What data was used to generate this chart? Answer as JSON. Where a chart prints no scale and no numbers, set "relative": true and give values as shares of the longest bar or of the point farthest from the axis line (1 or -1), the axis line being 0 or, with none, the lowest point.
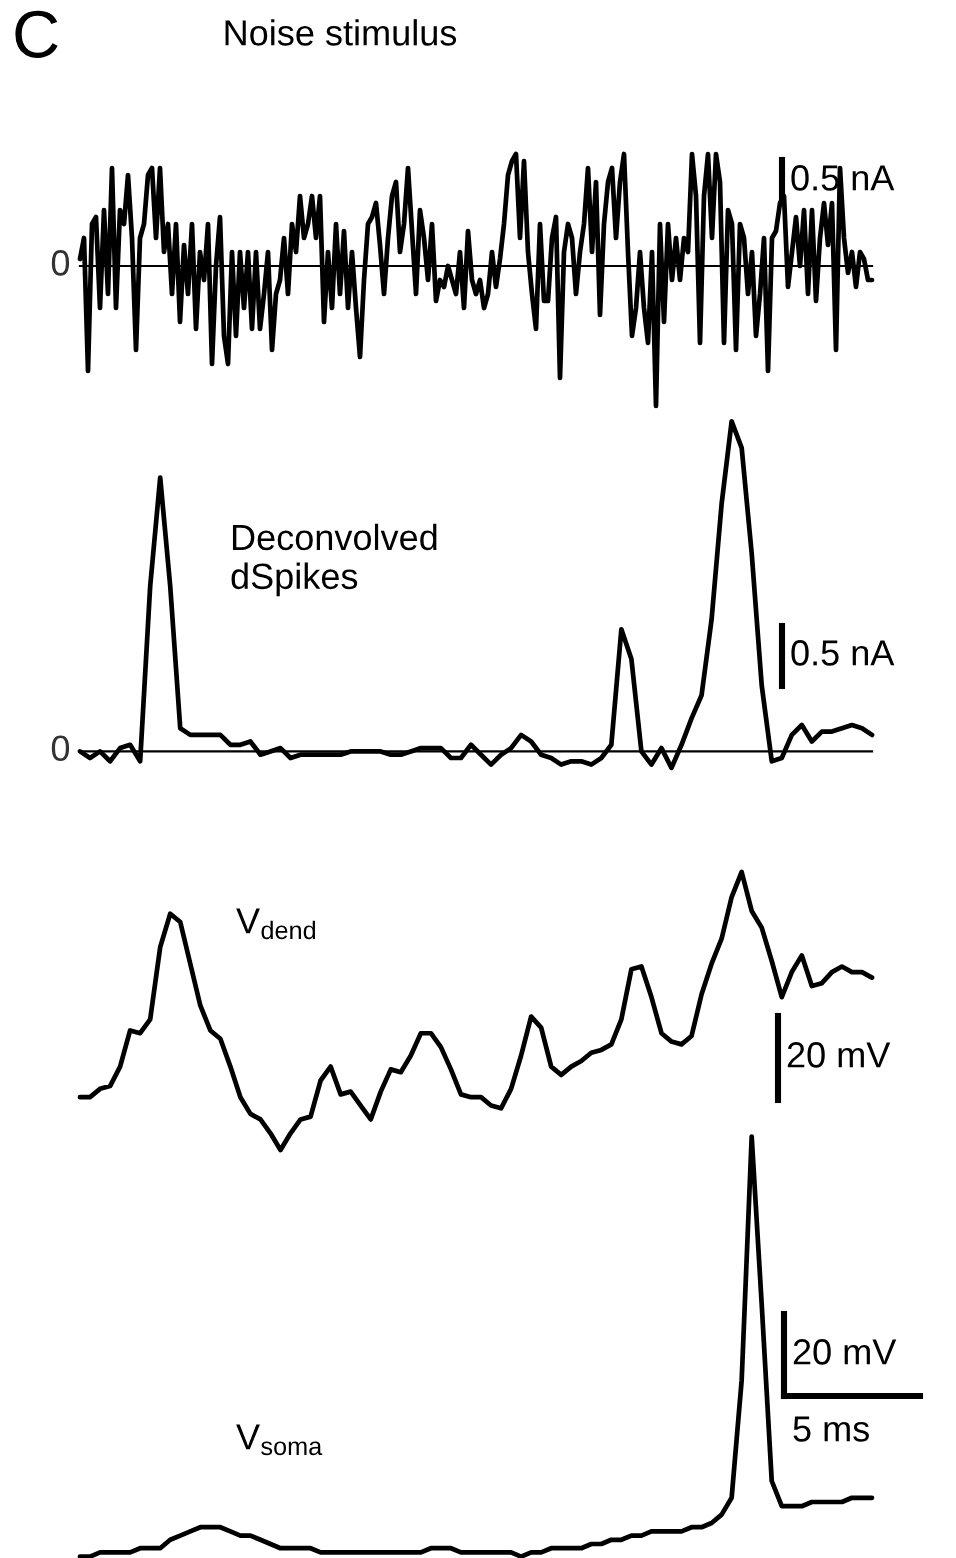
{
  "chart_data": [
    {
      "type": "line",
      "title": "Noise stimulus",
      "relative": true,
      "color": "#000000",
      "categories": [
        null,
        null,
        null,
        null,
        null,
        null,
        null,
        null,
        null,
        null,
        null,
        null,
        null,
        null,
        null,
        null,
        null,
        null,
        null,
        null,
        null,
        null,
        null,
        null,
        null,
        null,
        null,
        null,
        null,
        null,
        null,
        null,
        null,
        null,
        null,
        null,
        null,
        null,
        null,
        null,
        null,
        null,
        null,
        null,
        null,
        null,
        null,
        null,
        null,
        null,
        null,
        null,
        null,
        null,
        null,
        null,
        null,
        null,
        null,
        null,
        null,
        null,
        null,
        null,
        null,
        null,
        null,
        null,
        null,
        null,
        null,
        null,
        null,
        null,
        null,
        null,
        null,
        null,
        null,
        null,
        null,
        null,
        null,
        null,
        null,
        null,
        null,
        null,
        null,
        null,
        null,
        null,
        null,
        null,
        null,
        null,
        null,
        null,
        null,
        null,
        null,
        null,
        null,
        null,
        null,
        null,
        null,
        null,
        null,
        null,
        null,
        null,
        null,
        null,
        null,
        null,
        null,
        null,
        null,
        null,
        null,
        null,
        null,
        null,
        null,
        null,
        null,
        null,
        null,
        null,
        null,
        null,
        null,
        null,
        null,
        null,
        null,
        null,
        null,
        null,
        null,
        null,
        null,
        null,
        null,
        null,
        null,
        null,
        null,
        null,
        null,
        null,
        null,
        null,
        null,
        null,
        null,
        null,
        null,
        null,
        null,
        null,
        null,
        null,
        null,
        null,
        null,
        null,
        null,
        null,
        null,
        null,
        null,
        null,
        null,
        null,
        null,
        null,
        null,
        null,
        null,
        null,
        null,
        null,
        null,
        null,
        null,
        null,
        null,
        null,
        null,
        null,
        null,
        null,
        null,
        null,
        null,
        null,
        null
      ],
      "values": [
        0.05,
        0.2,
        -0.75,
        0.3,
        0.35,
        -0.3,
        0.4,
        -0.2,
        0.7,
        -0.3,
        0.4,
        0.3,
        0.65,
        0.2,
        -0.6,
        0.2,
        0.3,
        0.65,
        0.7,
        0.2,
        0.7,
        0.1,
        0.3,
        -0.2,
        0.3,
        -0.4,
        0.15,
        -0.2,
        0.3,
        -0.45,
        0.1,
        -0.1,
        0.3,
        -0.7,
        0,
        0.35,
        -0.5,
        -0.7,
        0.1,
        -0.5,
        0.1,
        -0.3,
        0.1,
        -0.45,
        0.1,
        -0.45,
        -0.2,
        0.1,
        -0.6,
        -0.2,
        -0.1,
        0.2,
        -0.2,
        0.3,
        0.1,
        0.5,
        0.2,
        0.3,
        0.5,
        0.2,
        0.5,
        -0.4,
        0.1,
        -0.3,
        0.3,
        -0.2,
        0.25,
        -0.3,
        0.1,
        -0.3,
        -0.65,
        -0.1,
        0.3,
        0.35,
        0.45,
        0.15,
        -0.2,
        0.2,
        0.5,
        0.6,
        0.1,
        0.3,
        0.7,
        0.25,
        -0.2,
        0.4,
        0.2,
        -0.1,
        0.3,
        -0.25,
        -0.1,
        -0.15,
        0,
        -0.1,
        -0.2,
        0.1,
        -0.3,
        0.25,
        -0.1,
        -0.2,
        -0.1,
        -0.3,
        -0.2,
        0.1,
        -0.15,
        0.05,
        0.3,
        0.65,
        0.75,
        0.8,
        0.2,
        0.75,
        0.1,
        -0.2,
        -0.45,
        0.3,
        -0.25,
        -0.25,
        0.2,
        0.35,
        -0.8,
        0.1,
        0.3,
        0.2,
        -0.2,
        0.1,
        0.3,
        0.7,
        0.1,
        0.6,
        -0.35,
        0.3,
        0.6,
        0.7,
        0.2,
        0.6,
        0.8,
        0.1,
        -0.5,
        -0.3,
        0.1,
        -0.3,
        -0.55,
        0.1,
        -1.0,
        0.3,
        -0.4,
        0.3,
        -0.1,
        0.2,
        -0.1,
        0.2,
        0.1,
        0.8,
        0.5,
        -0.55,
        0.5,
        0.8,
        0.2,
        0.8,
        0.6,
        -0.55,
        0.4,
        0.3,
        -0.6,
        0.3,
        0.2,
        -0.2,
        0.1,
        -0.5,
        -0.2,
        0.2,
        -0.75,
        0.2,
        0.25,
        0.45,
        0.5,
        -0.15,
        0.1,
        0.35,
        0,
        0.4,
        -0.2,
        0.4,
        -0.25,
        0.2,
        0.45,
        0.15,
        0.45,
        -0.6,
        0.7,
        0.2,
        -0.05,
        0.1,
        -0.15,
        0.1,
        0.05,
        -0.1,
        -0.1
      ],
      "ref_lines": [
        {
          "axis": "y",
          "value": 0,
          "label": "0"
        }
      ],
      "annotations": [
        "0.5 nA",
        "C"
      ]
    },
    {
      "type": "line",
      "title": "Deconvolved dSpikes",
      "relative": true,
      "color": "#000000",
      "categories": [
        null,
        null,
        null,
        null,
        null,
        null,
        null,
        null,
        null,
        null,
        null,
        null,
        null,
        null,
        null,
        null,
        null,
        null,
        null,
        null,
        null,
        null,
        null,
        null,
        null,
        null,
        null,
        null,
        null,
        null,
        null,
        null,
        null,
        null,
        null,
        null,
        null,
        null,
        null,
        null,
        null,
        null,
        null,
        null,
        null,
        null,
        null,
        null,
        null,
        null,
        null,
        null,
        null,
        null,
        null,
        null,
        null,
        null,
        null,
        null,
        null,
        null,
        null,
        null,
        null,
        null,
        null,
        null,
        null,
        null,
        null,
        null,
        null,
        null,
        null,
        null,
        null,
        null,
        null,
        null
      ],
      "values": [
        0,
        -0.02,
        0,
        -0.03,
        0.01,
        0.02,
        -0.03,
        0.5,
        0.83,
        0.5,
        0.07,
        0.05,
        0.05,
        0.05,
        0.05,
        0.02,
        0.02,
        0.03,
        -0.01,
        0,
        0.01,
        -0.02,
        -0.01,
        -0.01,
        -0.01,
        -0.01,
        -0.01,
        0,
        0,
        0,
        0,
        -0.01,
        -0.01,
        0,
        0.01,
        0.01,
        0.01,
        -0.02,
        -0.02,
        0.02,
        -0.01,
        -0.04,
        -0.01,
        0.01,
        0.05,
        0.03,
        -0.01,
        -0.02,
        -0.04,
        -0.03,
        -0.03,
        -0.04,
        -0.02,
        0.02,
        0.37,
        0.28,
        0,
        -0.04,
        0.01,
        -0.05,
        0.02,
        0.1,
        0.17,
        0.4,
        0.75,
        1.0,
        0.92,
        0.6,
        0.2,
        -0.03,
        -0.02,
        0.05,
        0.08,
        0.03,
        0.06,
        0.06,
        0.07,
        0.08,
        0.07,
        0.05
      ],
      "ref_lines": [
        {
          "axis": "y",
          "value": 0,
          "label": "0"
        }
      ],
      "annotations": [
        "0.5 nA"
      ]
    },
    {
      "type": "line",
      "title": "V$_{dend}$",
      "relative": true,
      "color": "#000000",
      "categories": [
        null,
        null,
        null,
        null,
        null,
        null,
        null,
        null,
        null,
        null,
        null,
        null,
        null,
        null,
        null,
        null,
        null,
        null,
        null,
        null,
        null,
        null,
        null,
        null,
        null,
        null,
        null,
        null,
        null,
        null,
        null,
        null,
        null,
        null,
        null,
        null,
        null,
        null,
        null,
        null,
        null,
        null,
        null,
        null,
        null,
        null,
        null,
        null,
        null,
        null,
        null,
        null,
        null,
        null,
        null,
        null,
        null,
        null,
        null,
        null,
        null,
        null,
        null,
        null,
        null,
        null,
        null,
        null,
        null,
        null,
        null,
        null,
        null,
        null,
        null,
        null,
        null,
        null,
        null,
        null
      ],
      "values": [
        0.19,
        0.19,
        0.22,
        0.23,
        0.3,
        0.43,
        0.42,
        0.47,
        0.73,
        0.85,
        0.82,
        0.67,
        0.52,
        0.43,
        0.4,
        0.3,
        0.19,
        0.13,
        0.11,
        0.06,
        0,
        0.06,
        0.11,
        0.12,
        0.25,
        0.3,
        0.2,
        0.21,
        0.16,
        0.11,
        0.21,
        0.29,
        0.28,
        0.34,
        0.42,
        0.42,
        0.37,
        0.29,
        0.2,
        0.19,
        0.19,
        0.16,
        0.15,
        0.22,
        0.34,
        0.48,
        0.44,
        0.3,
        0.27,
        0.3,
        0.32,
        0.35,
        0.36,
        0.38,
        0.47,
        0.65,
        0.66,
        0.55,
        0.42,
        0.39,
        0.38,
        0.41,
        0.56,
        0.67,
        0.76,
        0.91,
        1.0,
        0.86,
        0.8,
        0.68,
        0.55,
        0.64,
        0.7,
        0.59,
        0.6,
        0.64,
        0.66,
        0.64,
        0.64,
        0.62
      ],
      "annotations": [
        "20 mV"
      ]
    },
    {
      "type": "line",
      "title": "V$_{soma}$",
      "relative": true,
      "color": "#000000",
      "categories": [
        null,
        null,
        null,
        null,
        null,
        null,
        null,
        null,
        null,
        null,
        null,
        null,
        null,
        null,
        null,
        null,
        null,
        null,
        null,
        null,
        null,
        null,
        null,
        null,
        null,
        null,
        null,
        null,
        null,
        null,
        null,
        null,
        null,
        null,
        null,
        null,
        null,
        null,
        null,
        null,
        null,
        null,
        null,
        null,
        null,
        null,
        null,
        null,
        null,
        null,
        null,
        null,
        null,
        null,
        null,
        null,
        null,
        null,
        null,
        null,
        null,
        null,
        null,
        null,
        null,
        null,
        null,
        null,
        null,
        null,
        null,
        null,
        null,
        null,
        null,
        null,
        null,
        null,
        null,
        null
      ],
      "values": [
        0,
        0,
        0.01,
        0.01,
        0.01,
        0.01,
        0.02,
        0.02,
        0.02,
        0.04,
        0.05,
        0.06,
        0.07,
        0.07,
        0.07,
        0.06,
        0.05,
        0.05,
        0.04,
        0.03,
        0.02,
        0.02,
        0.02,
        0.02,
        0.01,
        0.01,
        0.01,
        0.01,
        0.01,
        0.01,
        0.01,
        0.01,
        0.01,
        0.01,
        0.01,
        0.02,
        0.02,
        0.02,
        0.01,
        0.01,
        0.01,
        0.01,
        0.01,
        0.01,
        0,
        0.01,
        0.01,
        0.02,
        0.02,
        0.02,
        0.02,
        0.03,
        0.03,
        0.04,
        0.04,
        0.05,
        0.05,
        0.06,
        0.06,
        0.06,
        0.06,
        0.07,
        0.07,
        0.08,
        0.1,
        0.14,
        0.42,
        1.0,
        0.6,
        0.18,
        0.12,
        0.12,
        0.12,
        0.13,
        0.13,
        0.13,
        0.13,
        0.14,
        0.14,
        0.14
      ],
      "annotations": [
        "20 mV",
        "5 ms"
      ]
    }
  ]
}
